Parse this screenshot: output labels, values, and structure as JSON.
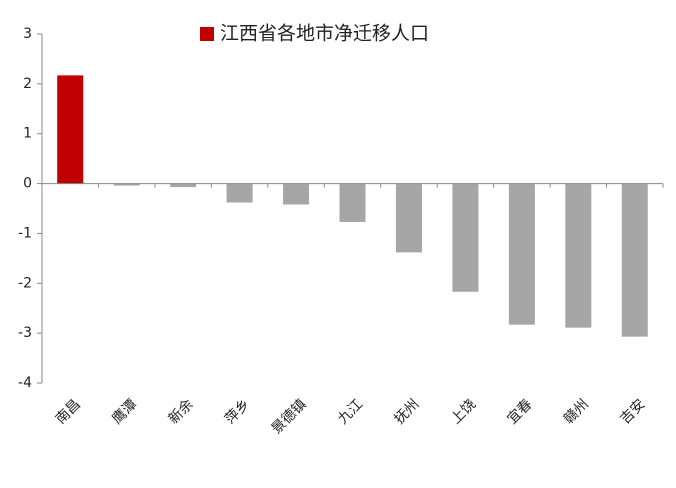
{
  "chart_data": {
    "type": "bar",
    "categories": [
      "南昌",
      "鹰潭",
      "新余",
      "萍乡",
      "景德镇",
      "九江",
      "抚州",
      "上饶",
      "宜春",
      "赣州",
      "吉安"
    ],
    "series": [
      {
        "name": "江西省各地市净迁移人口",
        "color": "#c00000",
        "values": [
          2.17,
          -0.04,
          -0.07,
          -0.38,
          -0.42,
          -0.77,
          -1.38,
          -2.17,
          -2.83,
          -2.89,
          -3.07
        ]
      }
    ],
    "point_colors": [
      "#c00000",
      "#a6a6a6",
      "#a6a6a6",
      "#a6a6a6",
      "#a6a6a6",
      "#a6a6a6",
      "#a6a6a6",
      "#a6a6a6",
      "#a6a6a6",
      "#a6a6a6",
      "#a6a6a6"
    ],
    "ylim": [
      -4,
      3
    ],
    "yticks": [
      -4,
      -3,
      -2,
      -1,
      0,
      1,
      2,
      3
    ],
    "grid": false,
    "legend": "top"
  }
}
